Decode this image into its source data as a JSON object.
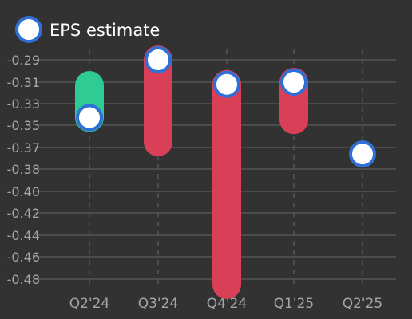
{
  "legend": {
    "label": "EPS estimate",
    "position": "top-left"
  },
  "colors": {
    "background": "#323232",
    "grid": "#555555",
    "tick_text": "#a6a6a6",
    "legend_text": "#ffffff",
    "beat": "#2ecc94",
    "miss": "#d93f56",
    "estimate_fill": "#ffffff",
    "estimate_stroke": "#2f6fd6"
  },
  "chart_data": {
    "type": "range-bar",
    "categories": [
      "Q2'24",
      "Q3'24",
      "Q4'24",
      "Q1'25",
      "Q2'25"
    ],
    "yticks": [
      "-0.29",
      "-0.31",
      "-0.33",
      "-0.35",
      "-0.37",
      "-0.38",
      "-0.40",
      "-0.42",
      "-0.44",
      "-0.46",
      "-0.48"
    ],
    "series": [
      {
        "name": "EPS estimate",
        "values": [
          -0.343,
          -0.29,
          -0.312,
          -0.31,
          -0.373
        ]
      },
      {
        "values": [
          -0.313,
          -0.365,
          -0.485,
          -0.345,
          null
        ]
      }
    ],
    "ylim": [
      -0.29,
      -0.48
    ],
    "grid": true,
    "xlabel": "",
    "ylabel": ""
  }
}
